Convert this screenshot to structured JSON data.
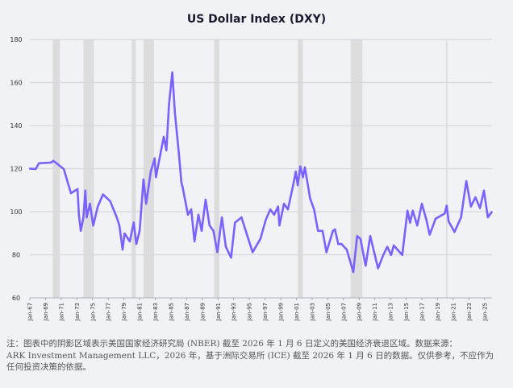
{
  "chart_data": {
    "type": "line",
    "title": "US Dollar Index (DXY)",
    "xlabel": "",
    "ylabel": "",
    "ylim": [
      60,
      180
    ],
    "yticks": [
      60,
      80,
      100,
      120,
      140,
      160,
      180
    ],
    "xlim": [
      "1967-01",
      "2026-01"
    ],
    "xtick_labels": [
      "Jan-67",
      "Jan-69",
      "Jan-71",
      "Jan-73",
      "Jan-75",
      "Jan-77",
      "Jan-79",
      "Jan-81",
      "Jan-83",
      "Jan-85",
      "Jan-87",
      "Jan-89",
      "Jan-91",
      "Jan-93",
      "Jan-95",
      "Jan-97",
      "Jan-99",
      "Jan-01",
      "Jan-03",
      "Jan-05",
      "Jan-07",
      "Jan-09",
      "Jan-11",
      "Jan-13",
      "Jan-15",
      "Jan-17",
      "Jan-19",
      "Jan-21",
      "Jan-23",
      "Jan-25"
    ],
    "grid": "horizontal",
    "line_color": "#7b61ff",
    "shading_color": "#dcdcdc",
    "recessions": [
      [
        "1969-12",
        "1970-11"
      ],
      [
        "1973-11",
        "1975-03"
      ],
      [
        "1980-01",
        "1980-07"
      ],
      [
        "1981-07",
        "1982-11"
      ],
      [
        "1990-07",
        "1991-03"
      ],
      [
        "2001-03",
        "2001-11"
      ],
      [
        "2007-12",
        "2009-06"
      ],
      [
        "2020-02",
        "2020-04"
      ]
    ],
    "series": [
      {
        "x": [
          "1967-01",
          "1967-10",
          "1968-03",
          "1969-09",
          "1970-01",
          "1971-05",
          "1971-11",
          "1972-04",
          "1973-02",
          "1973-04",
          "1973-07",
          "1973-11",
          "1974-02",
          "1974-04",
          "1974-09",
          "1975-02",
          "1975-09",
          "1976-05",
          "1977-04",
          "1978-02",
          "1978-06",
          "1978-11",
          "1979-02",
          "1979-10",
          "1980-04",
          "1980-08",
          "1981-01",
          "1981-07",
          "1981-11",
          "1982-06",
          "1982-12",
          "1983-02",
          "1984-02",
          "1984-06",
          "1984-10",
          "1985-03",
          "1985-07",
          "1986-01",
          "1986-05",
          "1986-07",
          "1987-03",
          "1987-08",
          "1988-01",
          "1988-07",
          "1988-12",
          "1989-06",
          "1989-12",
          "1990-06",
          "1990-12",
          "1991-07",
          "1992-01",
          "1992-09",
          "1993-03",
          "1994-01",
          "1994-10",
          "1995-06",
          "1996-06",
          "1997-02",
          "1997-09",
          "1998-03",
          "1998-09",
          "1998-11",
          "1999-06",
          "1999-12",
          "2000-08",
          "2000-12",
          "2001-03",
          "2001-07",
          "2001-11",
          "2002-02",
          "2002-10",
          "2003-04",
          "2003-10",
          "2004-05",
          "2004-11",
          "2005-09",
          "2005-12",
          "2006-05",
          "2006-10",
          "2007-06",
          "2008-04",
          "2008-10",
          "2009-03",
          "2009-11",
          "2010-06",
          "2011-06",
          "2012-02",
          "2012-08",
          "2013-02",
          "2013-06",
          "2014-07",
          "2015-03",
          "2015-07",
          "2015-11",
          "2016-06",
          "2017-01",
          "2017-08",
          "2018-01",
          "2018-10",
          "2019-12",
          "2020-03",
          "2020-06",
          "2021-03",
          "2022-01",
          "2022-09",
          "2023-04",
          "2023-11",
          "2024-06",
          "2024-12",
          "2025-06",
          "2025-12"
        ],
        "y": [
          120,
          119.8,
          122.5,
          122.8,
          123.6,
          119.8,
          113.6,
          108.6,
          110.5,
          98.6,
          91.1,
          97.4,
          109.8,
          97.4,
          103.7,
          93.6,
          102.4,
          108,
          104.9,
          97.4,
          93.6,
          82.4,
          89.9,
          86.2,
          95,
          85,
          91.1,
          115,
          103.7,
          118.6,
          124.8,
          116,
          134.8,
          128.5,
          149.7,
          164.7,
          146,
          127.3,
          113.6,
          111.2,
          98.6,
          101.1,
          86.2,
          98.6,
          91.1,
          105.6,
          93.6,
          91.1,
          81.2,
          97.4,
          83.7,
          78.7,
          94.9,
          97.4,
          88.7,
          81.2,
          87.4,
          96.1,
          101.1,
          98.6,
          102.4,
          93.6,
          103.7,
          101.1,
          112.3,
          118.6,
          112.3,
          121,
          116,
          120.6,
          106.1,
          101.1,
          91.1,
          91.1,
          81.2,
          91.1,
          91.8,
          85,
          85,
          82.4,
          72,
          88.7,
          87.4,
          74.9,
          88.7,
          73.7,
          79.9,
          83.7,
          79.9,
          84.3,
          79.9,
          100.5,
          94.9,
          100.5,
          93.6,
          103.7,
          96.1,
          89.3,
          96.7,
          99.2,
          102.8,
          95.5,
          90.6,
          97.4,
          114.2,
          102.4,
          106.7,
          101.7,
          109.8,
          97.4,
          99.9
        ]
      }
    ]
  },
  "footnote": {
    "line1": "注：图表中的阴影区域表示美国国家经济研究局 (NBER) 截至 2026 年 1 月 6 日定义的美国经济衰退区域。数据来源：",
    "line2": "ARK Investment Management LLC，2026 年，基于洲际交易所 (ICE) 截至 2026 年 1 月 6 日的数据。仅供参考，不应作为",
    "line3": "任何投资决策的依据。"
  }
}
